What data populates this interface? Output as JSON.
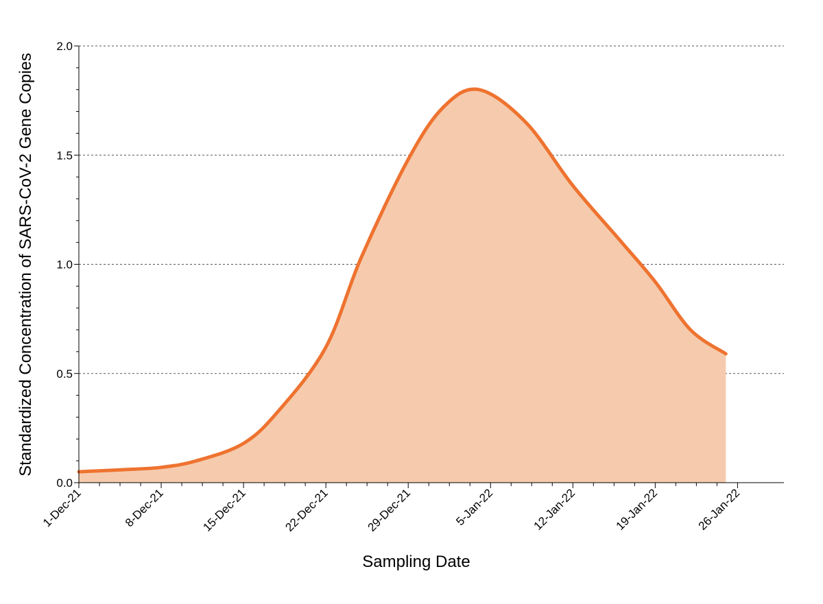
{
  "chart_data": {
    "type": "area",
    "title": "",
    "xlabel": "Sampling Date",
    "ylabel": "Standardized Concentration of SARS-CoV-2 Gene Copies",
    "x_range": [
      "2021-12-01",
      "2022-01-27"
    ],
    "ylim": [
      0,
      2.0
    ],
    "y_ticks": [
      "0.0",
      "0.5",
      "1.0",
      "1.5",
      "2.0"
    ],
    "x_ticks": [
      {
        "date": "2021-12-01",
        "label": "1-Dec-21"
      },
      {
        "date": "2021-12-08",
        "label": "8-Dec-21"
      },
      {
        "date": "2021-12-15",
        "label": "15-Dec-21"
      },
      {
        "date": "2021-12-22",
        "label": "22-Dec-21"
      },
      {
        "date": "2021-12-29",
        "label": "29-Dec-21"
      },
      {
        "date": "2022-01-05",
        "label": "5-Jan-22"
      },
      {
        "date": "2022-01-12",
        "label": "12-Jan-22"
      },
      {
        "date": "2022-01-19",
        "label": "19-Jan-22"
      },
      {
        "date": "2022-01-26",
        "label": "26-Jan-22"
      }
    ],
    "grid": "horizontal dashed",
    "series": [
      {
        "line_color": "#ee7330",
        "fill_color": "#f6cbad",
        "points": [
          {
            "x": "2021-12-01",
            "y": 0.05
          },
          {
            "x": "2021-12-05",
            "y": 0.06
          },
          {
            "x": "2021-12-08",
            "y": 0.07
          },
          {
            "x": "2021-12-11",
            "y": 0.1
          },
          {
            "x": "2021-12-15",
            "y": 0.18
          },
          {
            "x": "2021-12-18",
            "y": 0.33
          },
          {
            "x": "2021-12-22",
            "y": 0.62
          },
          {
            "x": "2021-12-25",
            "y": 1.03
          },
          {
            "x": "2021-12-29",
            "y": 1.48
          },
          {
            "x": "2022-01-01",
            "y": 1.72
          },
          {
            "x": "2022-01-04",
            "y": 1.8
          },
          {
            "x": "2022-01-08",
            "y": 1.65
          },
          {
            "x": "2022-01-12",
            "y": 1.36
          },
          {
            "x": "2022-01-16",
            "y": 1.11
          },
          {
            "x": "2022-01-19",
            "y": 0.92
          },
          {
            "x": "2022-01-22",
            "y": 0.7
          },
          {
            "x": "2022-01-25",
            "y": 0.59
          }
        ]
      }
    ]
  }
}
